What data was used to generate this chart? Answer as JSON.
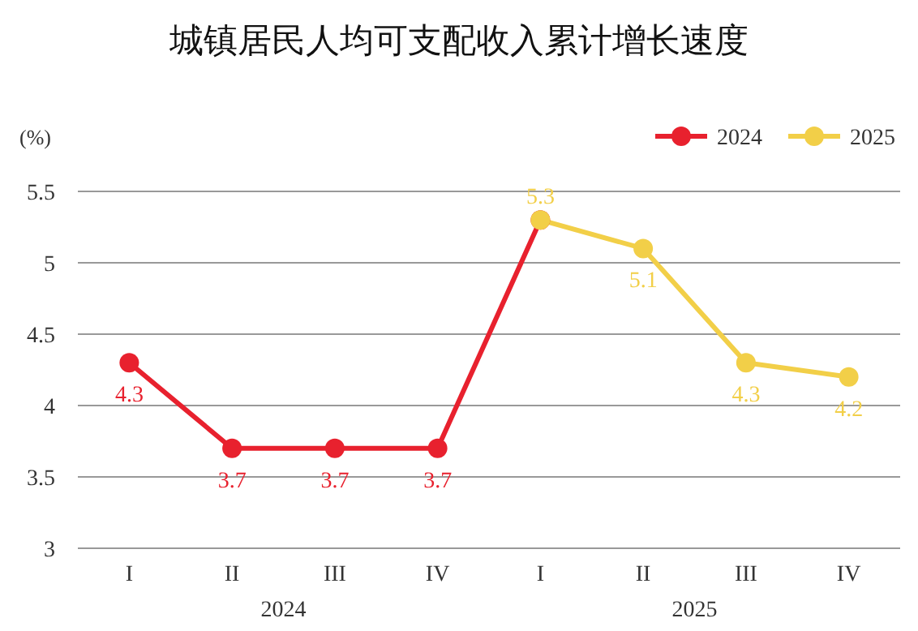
{
  "chart_data": {
    "type": "line",
    "title": "城镇居民人均可支配收入累计增长速度",
    "ylabel": "(%)",
    "categories": [
      "I",
      "II",
      "III",
      "IV",
      "I",
      "II",
      "III",
      "IV"
    ],
    "annotations": [
      "2024",
      "2025"
    ],
    "series": [
      {
        "name": "2024",
        "color": "#e8212e",
        "values": [
          4.3,
          3.7,
          3.7,
          3.7,
          5.3,
          null,
          null,
          null
        ],
        "value_labels": [
          "4.3",
          "3.7",
          "3.7",
          "3.7",
          null,
          null,
          null,
          null
        ]
      },
      {
        "name": "2025",
        "color": "#f2cf48",
        "values": [
          null,
          null,
          null,
          null,
          5.3,
          5.1,
          4.3,
          4.2
        ],
        "value_labels": [
          null,
          null,
          null,
          null,
          "5.3",
          "5.1",
          "4.3",
          "4.2"
        ]
      }
    ],
    "ylim": [
      3,
      5.5
    ],
    "yticks": [
      3,
      3.5,
      4,
      4.5,
      5,
      5.5
    ],
    "grid": "y",
    "legend": "top right",
    "marker": "circle",
    "line_style": "solid"
  }
}
